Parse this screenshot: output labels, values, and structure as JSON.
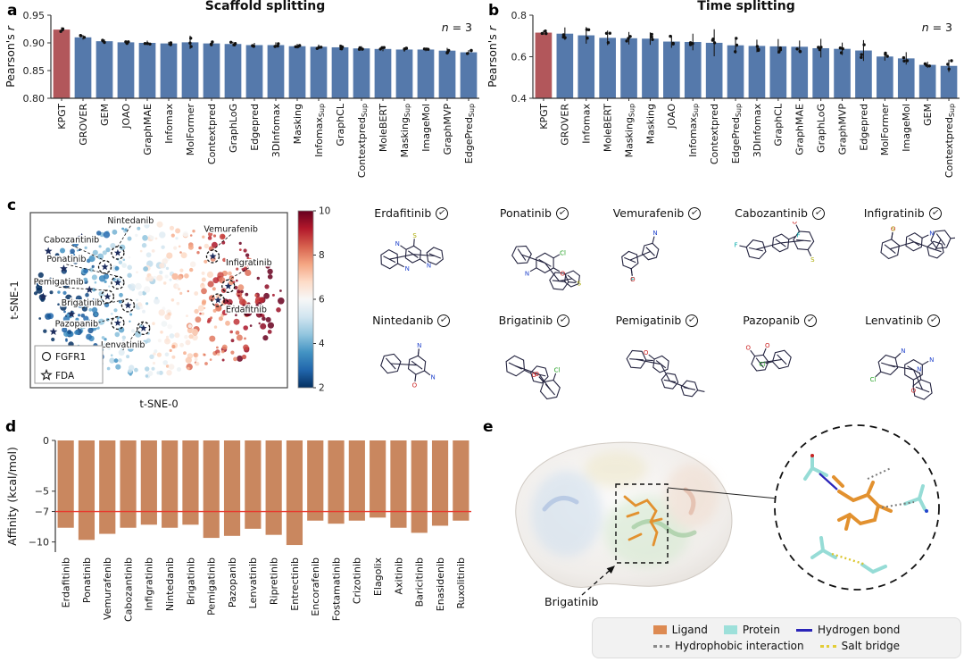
{
  "panel_labels": {
    "a": "a",
    "b": "b",
    "c": "c",
    "d": "d",
    "e": "e"
  },
  "icons": {
    "check": "✓"
  },
  "chart_data": [
    {
      "id": "chart-a",
      "type": "bar",
      "title": "Scaffold splitting",
      "ylabel": "Pearson's r",
      "note": "n = 3",
      "ylim": [
        0.8,
        0.95
      ],
      "yticks": [
        0.8,
        0.85,
        0.9,
        0.95
      ],
      "ytick_decimals": 2,
      "baseline": 0.8,
      "bar_color": "#5579ab",
      "highlight_index": 0,
      "highlight_color": "#b2575b",
      "categories": [
        "KPGT",
        "GROVER",
        "GEM",
        "JOAO",
        "GraphMAE",
        "Infomax",
        "MolFormer",
        "Contextpred",
        "GraphLoG",
        "Edgepred",
        "3DInfomax",
        "Masking",
        "Infomax_Sup",
        "GraphCL",
        "Contextpred_Sup",
        "MoleBERT",
        "Masking_Sup",
        "ImageMol",
        "GraphMVP",
        "EdgePred_Sup"
      ],
      "values": [
        0.924,
        0.91,
        0.903,
        0.901,
        0.9,
        0.899,
        0.901,
        0.899,
        0.898,
        0.896,
        0.896,
        0.894,
        0.893,
        0.892,
        0.89,
        0.889,
        0.888,
        0.888,
        0.886,
        0.883
      ],
      "errors": [
        0.004,
        0.004,
        0.003,
        0.003,
        0.004,
        0.003,
        0.012,
        0.004,
        0.004,
        0.004,
        0.005,
        0.004,
        0.004,
        0.005,
        0.004,
        0.004,
        0.004,
        0.003,
        0.005,
        0.004
      ]
    },
    {
      "id": "chart-b",
      "type": "bar",
      "title": "Time splitting",
      "ylabel": "Pearson's r",
      "note": "n = 3",
      "ylim": [
        0.4,
        0.8
      ],
      "yticks": [
        0.4,
        0.6,
        0.8
      ],
      "ytick_decimals": 1,
      "baseline": 0.4,
      "bar_color": "#5579ab",
      "highlight_index": 0,
      "highlight_color": "#b2575b",
      "categories": [
        "KPGT",
        "GROVER",
        "Infomax",
        "MoleBERT",
        "Masking_Sup",
        "Masking",
        "JOAO",
        "Infomax_Sup",
        "Contextpred",
        "EdgePred_Sup",
        "3DInfomax",
        "GraphCL",
        "GraphMAE",
        "GraphLoG",
        "GraphMVP",
        "Edgepred",
        "MolFormer",
        "ImageMol",
        "GEM",
        "Contextpred_Sup"
      ],
      "values": [
        0.716,
        0.711,
        0.703,
        0.691,
        0.689,
        0.687,
        0.673,
        0.671,
        0.667,
        0.655,
        0.652,
        0.65,
        0.648,
        0.641,
        0.638,
        0.63,
        0.601,
        0.592,
        0.561,
        0.556
      ],
      "errors": [
        0.01,
        0.03,
        0.04,
        0.035,
        0.03,
        0.03,
        0.03,
        0.04,
        0.065,
        0.04,
        0.03,
        0.035,
        0.03,
        0.045,
        0.03,
        0.05,
        0.02,
        0.03,
        0.015,
        0.03
      ]
    },
    {
      "id": "chart-tsne",
      "type": "scatter",
      "xlabel": "t-SNE-0",
      "ylabel": "t-SNE-1",
      "colorbar": {
        "min": 2,
        "max": 10,
        "ticks": [
          10,
          8,
          6,
          4,
          2
        ]
      },
      "legend": [
        {
          "marker": "circle",
          "label": "FGFR1"
        },
        {
          "marker": "star",
          "label": "FDA"
        }
      ],
      "fda_points": [
        [
          0.07,
          0.22
        ],
        [
          0.13,
          0.32
        ],
        [
          0.05,
          0.48
        ],
        [
          0.16,
          0.58
        ],
        [
          0.09,
          0.68
        ],
        [
          0.2,
          0.14
        ],
        [
          0.23,
          0.44
        ],
        [
          0.06,
          0.78
        ]
      ],
      "annotations": [
        {
          "label": "Nintedanib",
          "px": 0.34,
          "py": 0.23,
          "lx": 0.39,
          "ly": 0.06
        },
        {
          "label": "Vemurafenib",
          "px": 0.71,
          "py": 0.25,
          "lx": 0.78,
          "ly": 0.11
        },
        {
          "label": "Cabozantinib",
          "px": 0.29,
          "py": 0.31,
          "lx": 0.16,
          "ly": 0.17
        },
        {
          "label": "Ponatinib",
          "px": 0.34,
          "py": 0.4,
          "lx": 0.14,
          "ly": 0.28
        },
        {
          "label": "Infigratinib",
          "px": 0.77,
          "py": 0.42,
          "lx": 0.85,
          "ly": 0.3
        },
        {
          "label": "Pemigatinib",
          "px": 0.3,
          "py": 0.48,
          "lx": 0.11,
          "ly": 0.41
        },
        {
          "label": "Brigatinib",
          "px": 0.38,
          "py": 0.53,
          "lx": 0.2,
          "ly": 0.53
        },
        {
          "label": "Pazopanib",
          "px": 0.34,
          "py": 0.63,
          "lx": 0.18,
          "ly": 0.65
        },
        {
          "label": "Erdafitnib",
          "px": 0.73,
          "py": 0.5,
          "lx": 0.84,
          "ly": 0.57
        },
        {
          "label": "Lenvatinib",
          "px": 0.44,
          "py": 0.66,
          "lx": 0.36,
          "ly": 0.77
        }
      ]
    },
    {
      "id": "chart-d",
      "type": "bar",
      "ylabel": "Affinity (kcal/mol)",
      "ylim": [
        -11,
        0
      ],
      "yticks": [
        0,
        -5,
        -7,
        -10
      ],
      "ytick_decimals": 0,
      "baseline": 0,
      "ref_line": {
        "y": -7,
        "color": "#e8392e"
      },
      "bar_color": "#c9875f",
      "highlight_index": -1,
      "categories": [
        "Erdafitinib",
        "Ponatinib",
        "Vemurafenib",
        "Cabozantinib",
        "Infigratinib",
        "Nintedanib",
        "Brigatinib",
        "Pemigatinib",
        "Pazopanib",
        "Lenvatinib",
        "Ripretinib",
        "Entrectinib",
        "Encorafenib",
        "Fostamatinib",
        "Crizotinib",
        "Elagolix",
        "Axitinib",
        "Baricitinib",
        "Enasidenib",
        "Ruxolitinib"
      ],
      "values": [
        -8.6,
        -9.8,
        -9.2,
        -8.6,
        -8.3,
        -8.6,
        -8.3,
        -9.6,
        -9.4,
        -8.7,
        -9.3,
        -10.3,
        -7.9,
        -8.2,
        -7.9,
        -7.6,
        -8.6,
        -9.1,
        -8.4,
        -7.9
      ]
    }
  ],
  "molecules": {
    "items": [
      {
        "name": "Erdafitinib"
      },
      {
        "name": "Ponatinib"
      },
      {
        "name": "Vemurafenib"
      },
      {
        "name": "Cabozantinib"
      },
      {
        "name": "Infigratinib"
      },
      {
        "name": "Nintedanib"
      },
      {
        "name": "Brigatinib"
      },
      {
        "name": "Pemigatinib"
      },
      {
        "name": "Pazopanib"
      },
      {
        "name": "Lenvatinib"
      }
    ]
  },
  "panel_e": {
    "ligand_label": "Brigatinib",
    "legend": [
      {
        "style": "fill",
        "color": "#dd8a52",
        "label": "Ligand"
      },
      {
        "style": "fill",
        "color": "#9de0da",
        "label": "Protein"
      },
      {
        "style": "line",
        "color": "#2a24b8",
        "label": "Hydrogen bond"
      },
      {
        "style": "dotted",
        "color": "#8a8a8a",
        "label": "Hydrophobic interaction"
      },
      {
        "style": "dotted",
        "color": "#e3cd37",
        "label": "Salt bridge"
      }
    ]
  }
}
